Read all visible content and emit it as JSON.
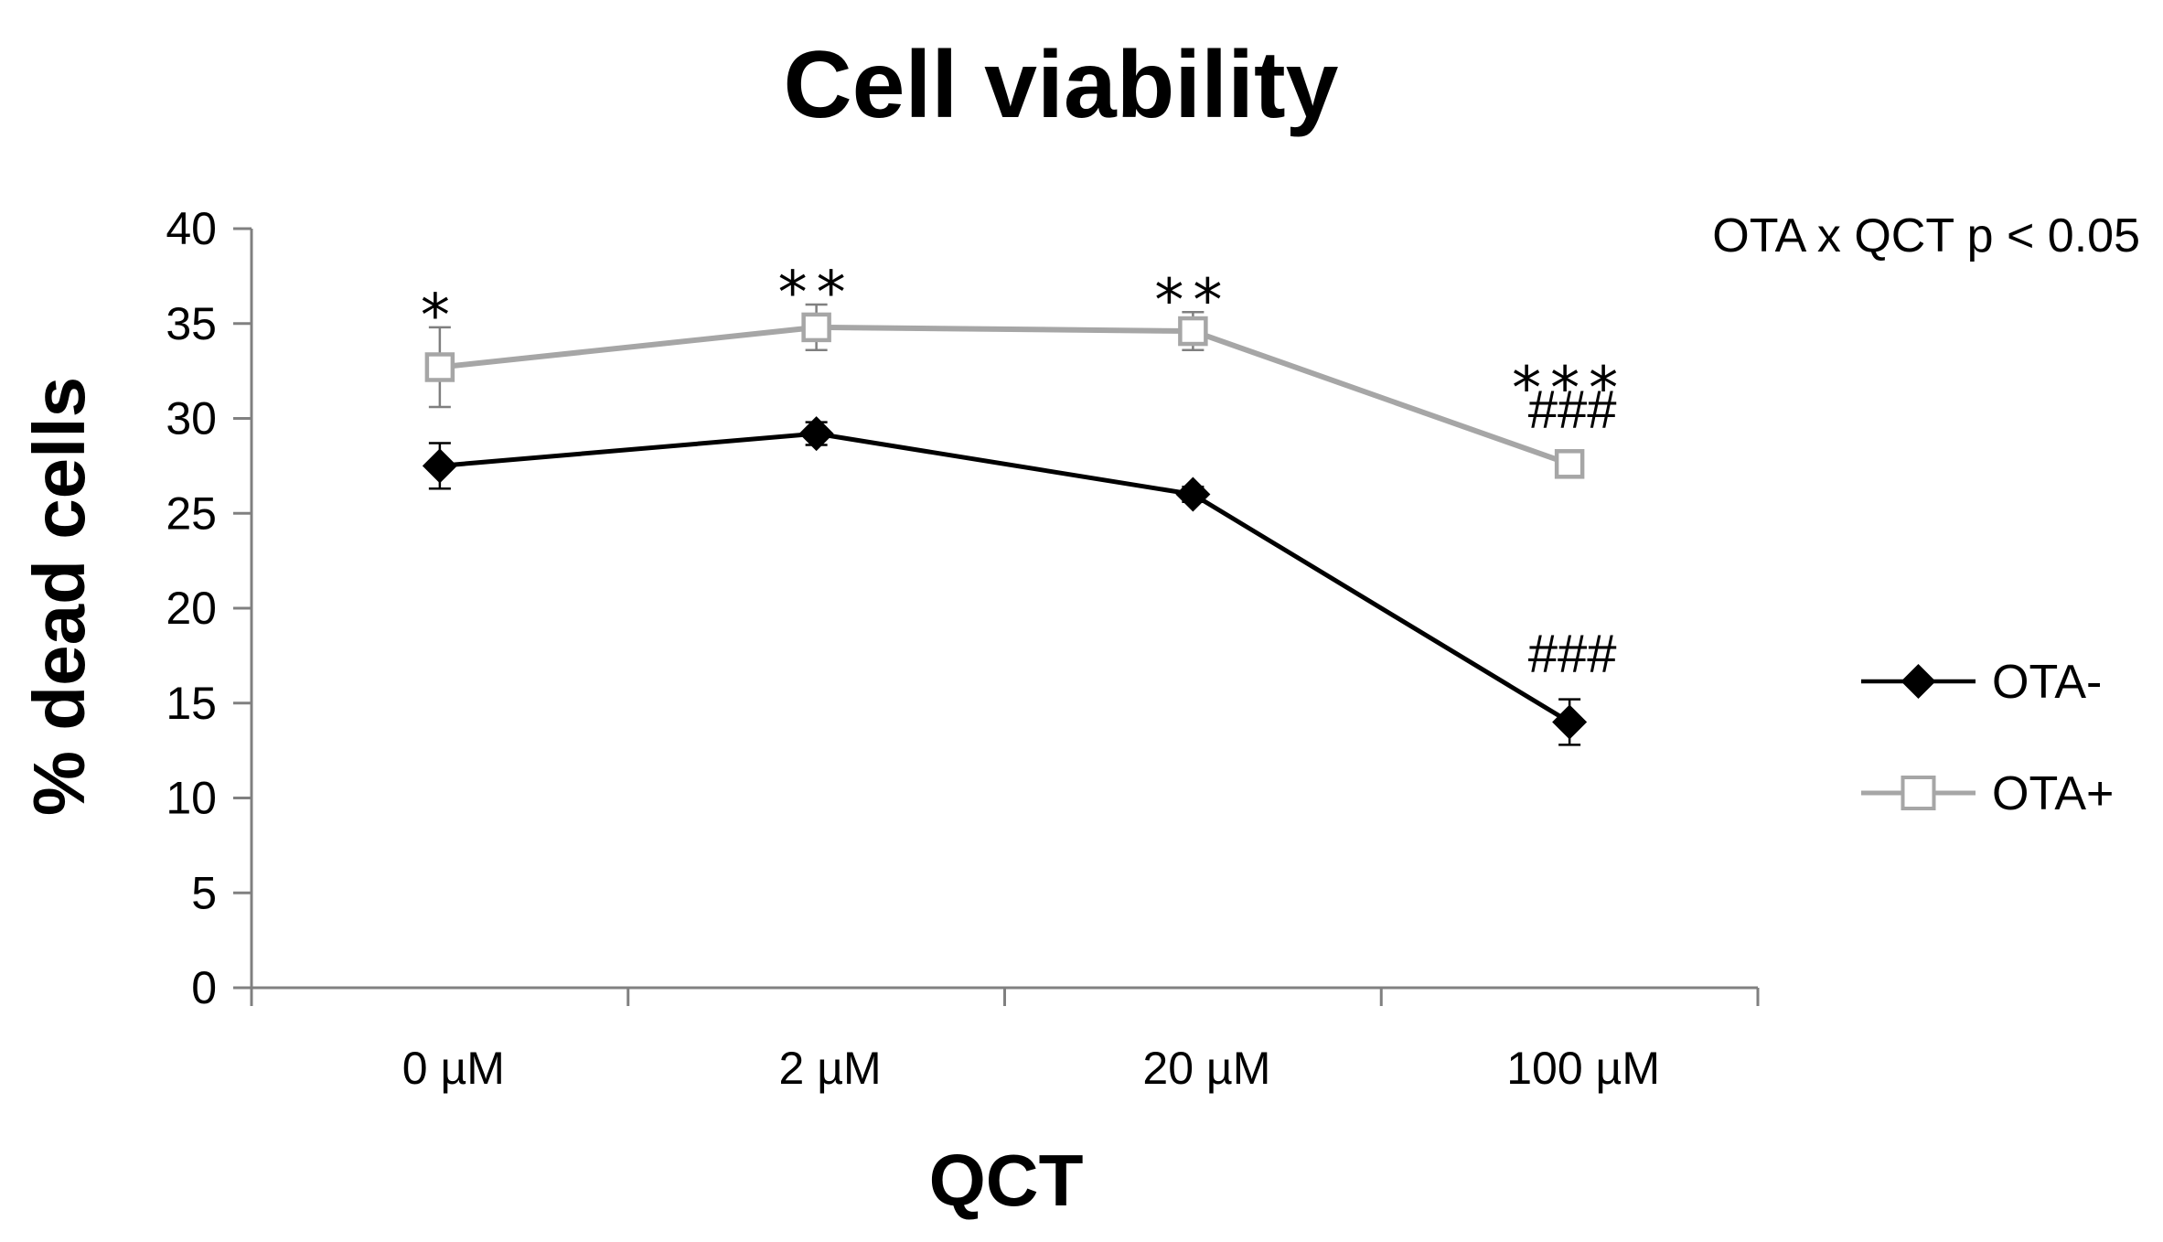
{
  "chart_data": {
    "type": "line",
    "title": "Cell viability",
    "xlabel": "QCT",
    "ylabel": "% dead cells",
    "categories": [
      "0 µM",
      "2 µM",
      "20 µM",
      "100 µM"
    ],
    "ylim": [
      0,
      40
    ],
    "yticks": [
      0,
      5,
      10,
      15,
      20,
      25,
      30,
      35,
      40
    ],
    "grid": false,
    "legend_position": "right",
    "series": [
      {
        "name": "OTA-",
        "color": "#000000",
        "marker": "filled-diamond",
        "values": [
          27.5,
          29.2,
          26.0,
          14.0
        ],
        "errors": [
          1.2,
          0.6,
          0.4,
          1.2
        ]
      },
      {
        "name": "OTA+",
        "color": "#a6a6a6",
        "marker": "open-square",
        "values": [
          32.7,
          34.8,
          34.6,
          27.6
        ],
        "errors": [
          2.1,
          1.2,
          1.0,
          0.7
        ]
      }
    ],
    "annotations": {
      "interaction": "OTA x QCT p < 0.05",
      "stars": [
        "*",
        "**",
        "**",
        "***"
      ],
      "hash_upper": [
        "",
        "",
        "",
        "###"
      ],
      "hash_lower": [
        "",
        "",
        "",
        "###"
      ]
    }
  }
}
